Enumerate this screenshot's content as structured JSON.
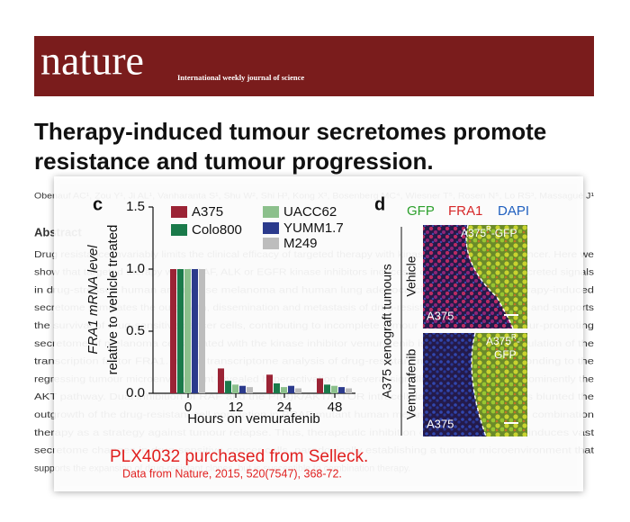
{
  "header": {
    "logo": "nature",
    "tagline": "International weekly journal of science"
  },
  "article": {
    "title_lines": [
      "Therapy-induced tumour secretomes promote",
      "resistance and tumour progression."
    ],
    "authors": "Obenauf AC¹, Zou Y¹, Ji AL¹, Vanharanta S¹, Shu W², Shi H³, Kong X³, Bosenberg MC⁴, Wiesner T⁵, Rosen N⁵, Lo RS³, Massagué J¹",
    "abstract_heading": "Abstract",
    "abstract_lines": [
      "Drug resistance invariably limits the clinical efficacy of targeted therapy with kinase inhibitors against cancer. Here we",
      "show that targeted therapy with BRAF, ALK or EGFR kinase inhibitors induces a complex network of secreted signals",
      "in drug-stressed human and mouse melanoma and human lung adenocarcinoma cells. This therapy-induced",
      "secretome stimulates the outgrowth, dissemination and metastasis of drug-resistant cancer cell clones and supports",
      "the survival of drug-sensitive cancer cells, contributing to incomplete tumour regression. The tumour-promoting",
      "secretome of melanoma cells treated with the kinase inhibitor vemurafenib is driven by down-regulation of the",
      "transcription factor FRA1. In situ transcriptome analysis of drug-resistant melanoma cells responding to the",
      "regressing tumour microenvironment revealed hyperactivation of several signalling pathways, most prominently the",
      "AKT pathway. Dual inhibition of RAF and the PI(3)K/AKT/mTOR intracellular signalling pathways blunted the",
      "outgrowth of the drug-resistant cell population in BRAF mutant human melanoma, suggesting this combination",
      "therapy as a strategy against tumour relapse. Thus, therapeutic inhibition of oncogenic drivers induces vast",
      "secretome changes in drug-sensitive cancer cells, paradoxically establishing a tumour microenvironment that",
      "supports the expansion of drug-resistant clones, but is susceptible to combination therapy."
    ]
  },
  "chart_data": {
    "type": "bar",
    "panel_label": "c",
    "y_label": [
      "FRA1 mRNA level",
      "relative to vehicle treated"
    ],
    "x_label": "Hours on vemurafenib",
    "categories": [
      "0",
      "12",
      "24",
      "48"
    ],
    "series": [
      {
        "name": "A375",
        "color": "#9b2335",
        "values": [
          1,
          0.2,
          0.15,
          0.12
        ]
      },
      {
        "name": "Colo800",
        "color": "#1a7a4a",
        "values": [
          1,
          0.1,
          0.08,
          0.07
        ]
      },
      {
        "name": "UACC62",
        "color": "#8cc08c",
        "values": [
          1,
          0.07,
          0.05,
          0.06
        ]
      },
      {
        "name": "YUMM1.7",
        "color": "#2b3a8c",
        "values": [
          1,
          0.06,
          0.06,
          0.05
        ]
      },
      {
        "name": "M249",
        "color": "#bdbdbd",
        "values": [
          1,
          0.05,
          0.04,
          0.04
        ]
      }
    ],
    "ylim": [
      0,
      1.5
    ],
    "yticks": [
      {
        "value": 0,
        "label": "0.0"
      },
      0.5,
      {
        "value": 1,
        "label": "1.0"
      },
      1.5
    ]
  },
  "panel_d": {
    "label": "d",
    "channels": [
      {
        "name": "GFP",
        "color": "#2ca02c"
      },
      {
        "name": "FRA1",
        "color": "#d62728"
      },
      {
        "name": "DAPI",
        "color": "#1f5fbf"
      }
    ],
    "side_label": "A375 xenograft tumours",
    "rows": [
      {
        "label": "Vehicle",
        "inset": "A375",
        "tag": {
          "base": "A375",
          "sup": "R",
          "rest": "-GFP"
        }
      },
      {
        "label": "Vemurafenib",
        "inset": "A375",
        "tag": {
          "base": "A375",
          "sup": "R",
          "rest": "-",
          "line2": "GFP"
        }
      }
    ]
  },
  "caption": {
    "headline": "PLX4032 purchased from Selleck.",
    "source": "Data from Nature, 2015, 520(7547), 368-72."
  }
}
